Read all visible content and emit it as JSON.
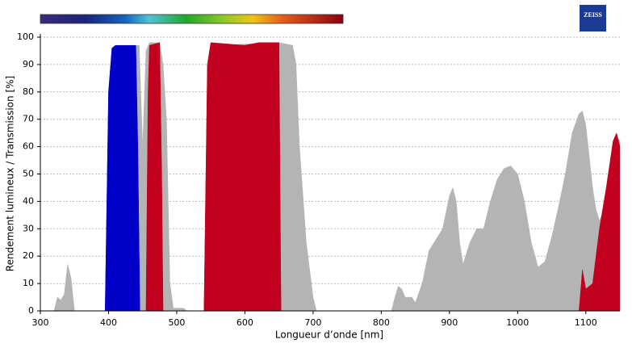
{
  "chart_data": {
    "type": "area",
    "logo": "ZEISS",
    "xlabel": "Longueur d’onde [nm]",
    "ylabel": "Rendement lumineux / Transmission [%]",
    "xlim": [
      300,
      1150
    ],
    "xticks": [
      300,
      400,
      500,
      600,
      700,
      800,
      900,
      1000,
      1100
    ],
    "ylim": [
      0,
      100
    ],
    "yticks": [
      0,
      10,
      20,
      30,
      40,
      50,
      60,
      70,
      80,
      90,
      100
    ],
    "grid": true,
    "series": [
      {
        "color": "#b4b4b4",
        "x": [
          300,
          320,
          325,
          330,
          335,
          340,
          345,
          350,
          395,
          400,
          405,
          445,
          450,
          455,
          460,
          475,
          480,
          485,
          490,
          495,
          510,
          515,
          540,
          545,
          550,
          560,
          650,
          670,
          675,
          680,
          690,
          700,
          705,
          815,
          820,
          825,
          830,
          835,
          845,
          850,
          860,
          870,
          880,
          890,
          900,
          905,
          910,
          915,
          920,
          930,
          940,
          950,
          960,
          970,
          980,
          990,
          1000,
          1010,
          1020,
          1030,
          1040,
          1050,
          1060,
          1070,
          1080,
          1090,
          1095,
          1100,
          1110,
          1115,
          1120,
          1130,
          1140,
          1145,
          1150
        ],
        "values": [
          0,
          0,
          5,
          4,
          6,
          17,
          12,
          0,
          0,
          80,
          96,
          97,
          60,
          95,
          98,
          98,
          90,
          70,
          10,
          1,
          1,
          0,
          0,
          50,
          95,
          97,
          98,
          97,
          90,
          60,
          25,
          5,
          0,
          0,
          5,
          9,
          8,
          5,
          5,
          3,
          10,
          22,
          26,
          30,
          42,
          45,
          40,
          25,
          17,
          25,
          30,
          30,
          40,
          48,
          52,
          53,
          50,
          40,
          25,
          16,
          18,
          27,
          38,
          50,
          65,
          72,
          73,
          68,
          45,
          37,
          33,
          38,
          55,
          64,
          62
        ]
      },
      {
        "color": "#0000c8",
        "x": [
          395,
          400,
          405,
          410,
          440,
          443,
          446
        ],
        "values": [
          0,
          80,
          96,
          97,
          97,
          60,
          0
        ]
      },
      {
        "color": "#c0001e",
        "x": [
          455,
          458,
          460,
          475,
          478,
          480
        ],
        "values": [
          0,
          80,
          97,
          98,
          50,
          0
        ]
      },
      {
        "color": "#c0001e",
        "x": [
          540,
          545,
          550,
          600,
          620,
          650,
          653
        ],
        "values": [
          0,
          90,
          98,
          97,
          98,
          98,
          0
        ]
      },
      {
        "color": "#c0001e",
        "x": [
          1090,
          1095,
          1100,
          1110,
          1120,
          1130,
          1140,
          1145,
          1150
        ],
        "values": [
          0,
          15,
          8,
          10,
          30,
          45,
          62,
          65,
          60
        ]
      }
    ]
  }
}
